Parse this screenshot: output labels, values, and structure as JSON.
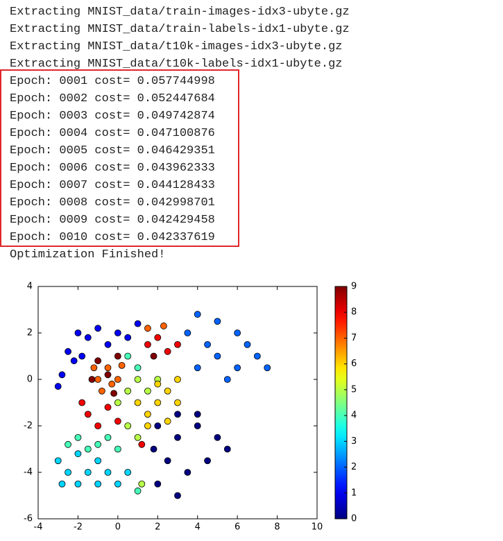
{
  "log_lines": [
    "Extracting MNIST_data/train-images-idx3-ubyte.gz",
    "Extracting MNIST_data/train-labels-idx1-ubyte.gz",
    "Extracting MNIST_data/t10k-images-idx3-ubyte.gz",
    "Extracting MNIST_data/t10k-labels-idx1-ubyte.gz"
  ],
  "highlighted_lines": [
    "Epoch: 0001 cost= 0.057744998",
    "Epoch: 0002 cost= 0.052447684",
    "Epoch: 0003 cost= 0.049742874",
    "Epoch: 0004 cost= 0.047100876",
    "Epoch: 0005 cost= 0.046429351",
    "Epoch: 0006 cost= 0.043962333",
    "Epoch: 0007 cost= 0.044128433",
    "Epoch: 0008 cost= 0.042998701",
    "Epoch: 0009 cost= 0.042429458",
    "Epoch: 0010 cost= 0.042337619"
  ],
  "final_line": "Optimization Finished!",
  "chart_data": {
    "type": "scatter",
    "xlim": [
      -4,
      10
    ],
    "ylim": [
      -6,
      4
    ],
    "xticks": [
      -4,
      -2,
      0,
      2,
      4,
      6,
      8,
      10
    ],
    "yticks": [
      -6,
      -4,
      -2,
      0,
      2,
      4
    ],
    "colormap": "jet",
    "points": {
      "x": [
        -2.5,
        -2,
        -1.5,
        -1,
        -0.5,
        0,
        0.5,
        -2.8,
        -3,
        -2.2,
        1,
        -1.8,
        2,
        3,
        4,
        5,
        2.5,
        3.5,
        4.5,
        2,
        3,
        1.8,
        4,
        5.5,
        3,
        4,
        5,
        6,
        7,
        7.5,
        5,
        6,
        4.5,
        3.5,
        6.5,
        5.5,
        4,
        -3,
        -2.5,
        -2,
        -1.5,
        -1,
        -0.5,
        0,
        -2,
        -1,
        0.5,
        -2.8,
        -2,
        -1.5,
        -1,
        -0.5,
        0,
        1,
        0.5,
        1,
        -2.5,
        0,
        0.5,
        1,
        1.5,
        2,
        0.5,
        1,
        1.2,
        1,
        1.5,
        2,
        2.5,
        3,
        1.5,
        2.5,
        2,
        3,
        -1,
        -0.5,
        0,
        -0.8,
        -0.3,
        -1.2,
        0.2,
        2.3,
        1.5,
        -1.5,
        -1,
        -0.5,
        0,
        -1.8,
        1.5,
        2,
        2.5,
        3,
        1.2,
        -1,
        -0.5,
        -1.3,
        0,
        -0.2,
        1.8
      ],
      "y": [
        1.2,
        2,
        1.8,
        2.2,
        1.5,
        2,
        1.8,
        0.2,
        -0.3,
        0.8,
        2.4,
        1,
        -2,
        -2.5,
        -2,
        -2.5,
        -3.5,
        -4,
        -3.5,
        -4.5,
        -5,
        -3,
        -1.5,
        -3,
        -1.5,
        2.8,
        2.5,
        2,
        1,
        0.5,
        1,
        0.5,
        1.5,
        2,
        1.5,
        0,
        0.5,
        -3.5,
        -4,
        -4.5,
        -4,
        -4.5,
        -4,
        -4.5,
        -3.2,
        -3.5,
        -4,
        -4.5,
        -2.5,
        -3,
        -2.8,
        -2.5,
        -3,
        -4.8,
        1,
        0.5,
        -2.8,
        -1,
        -0.5,
        0,
        -0.5,
        0,
        -2,
        -2.5,
        -4.5,
        -1,
        -1.5,
        -1,
        -0.5,
        -1,
        -2,
        -1.8,
        -0.2,
        0,
        0,
        0.5,
        0,
        -0.5,
        -0.2,
        0.5,
        0.6,
        2.3,
        2.2,
        -1.5,
        -2,
        -1.2,
        -1.8,
        -1,
        1.5,
        1.8,
        1.2,
        1.5,
        -2.8,
        0.8,
        0.2,
        0,
        1,
        -0.6,
        1
      ],
      "c": [
        1,
        1,
        1,
        1,
        1,
        1,
        1,
        1,
        1,
        1,
        1,
        1,
        0,
        0,
        0,
        0,
        0,
        0,
        0,
        0,
        0,
        0,
        0,
        0,
        0,
        2,
        2,
        2,
        2,
        2,
        2,
        2,
        2,
        2,
        2,
        2,
        2,
        3,
        3,
        3,
        3,
        3,
        3,
        3,
        3,
        3,
        3,
        3,
        4,
        4,
        4,
        4,
        4,
        4,
        4,
        4,
        4,
        5,
        5,
        5,
        5,
        5,
        5,
        5,
        5,
        6,
        6,
        6,
        6,
        6,
        6,
        6,
        6,
        6,
        7,
        7,
        7,
        7,
        7,
        7,
        7,
        7,
        7,
        8,
        8,
        8,
        8,
        8,
        8,
        8,
        8,
        8,
        8,
        9,
        9,
        9,
        9,
        9,
        9
      ]
    },
    "colorbar": {
      "lim": [
        0,
        9
      ],
      "ticks": [
        0,
        1,
        2,
        3,
        4,
        5,
        6,
        7,
        8,
        9
      ]
    }
  }
}
